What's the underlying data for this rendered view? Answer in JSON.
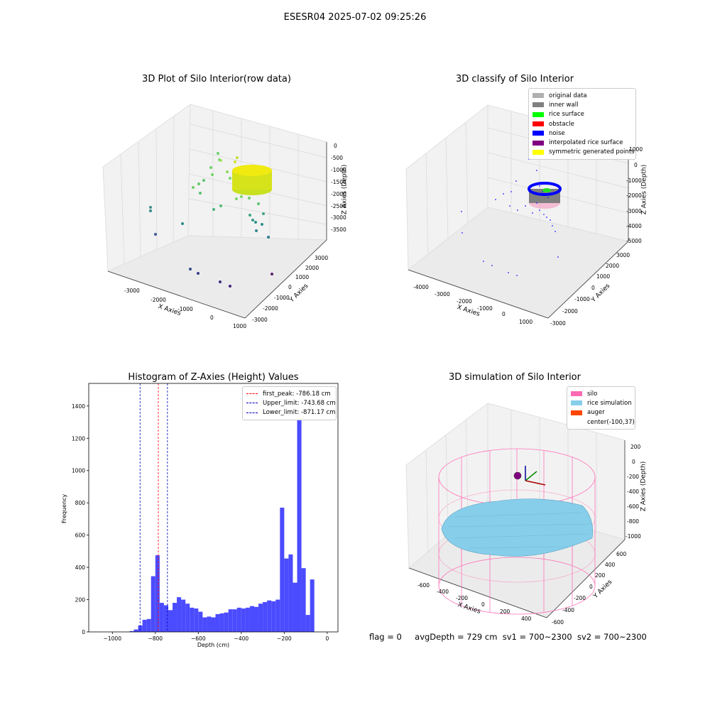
{
  "figure": {
    "suptitle": "ESESR04 2025-07-02 09:25:26"
  },
  "panel_raw": {
    "title": "3D Plot of Silo Interior(row data)",
    "xlabel": "X Axies",
    "ylabel": "Y Axies",
    "zlabel": "Z Axies (Depth)",
    "xticks": [
      "-3000",
      "-2000",
      "-1000",
      "0",
      "1000"
    ],
    "yticks": [
      "-3000",
      "-2000",
      "-1000",
      "0",
      "1000",
      "2000",
      "3000"
    ],
    "zticks": [
      "0",
      "-500",
      "-1000",
      "-1500",
      "-2000",
      "-2500",
      "-3000",
      "-3500"
    ]
  },
  "panel_classify": {
    "title": "3D classify of Silo Interior",
    "xlabel": "X Axies",
    "ylabel": "Y Axies",
    "zlabel": "Z Axies (Depth)",
    "xticks": [
      "-4000",
      "-3000",
      "-2000",
      "-1000",
      "0",
      "1000"
    ],
    "yticks": [
      "-3000",
      "-2000",
      "-1000",
      "0",
      "1000",
      "2000",
      "3000"
    ],
    "zticks": [
      "1000",
      "0",
      "-1000",
      "-2000",
      "-3000",
      "-4000",
      "-5000"
    ],
    "legend": [
      {
        "label": "original data",
        "color": "#b0b0b0"
      },
      {
        "label": "inner wall",
        "color": "#808080"
      },
      {
        "label": "rice surface",
        "color": "#00ff00"
      },
      {
        "label": "obstacle",
        "color": "#ff0000"
      },
      {
        "label": "noise",
        "color": "#0000ff"
      },
      {
        "label": "interpolated rice surface",
        "color": "#800080"
      },
      {
        "label": "symmetric generated points",
        "color": "#ffff00"
      }
    ]
  },
  "panel_sim": {
    "title": "3D simulation of Silo Interior",
    "xlabel": "X Axies",
    "ylabel": "Y Axies",
    "zlabel": "Z Axies (Depth)",
    "xticks": [
      "-600",
      "-400",
      "-200",
      "0",
      "200",
      "400"
    ],
    "yticks": [
      "-600",
      "-400",
      "-200",
      "0",
      "200",
      "400",
      "600"
    ],
    "zticks": [
      "200",
      "0",
      "-200",
      "-400",
      "-600",
      "-800",
      "-1000"
    ],
    "legend": [
      {
        "label": "silo",
        "color": "#ff69b4"
      },
      {
        "label": "rice simulation",
        "color": "#87ceeb"
      },
      {
        "label": "auger",
        "color": "#ff4500"
      },
      {
        "label": "center(-100,37)",
        "color": ""
      }
    ]
  },
  "footer": {
    "flag": "flag = 0",
    "avg": "avgDepth = 729 cm",
    "sv1": "sv1 = 700~2300",
    "sv2": "sv2 = 700~2300"
  },
  "chart_data": {
    "type": "bar",
    "title": "Histogram of Z-Axies (Height) Values",
    "xlabel": "Depth (cm)",
    "ylabel": "Frequency",
    "xlim": [
      -1110,
      50
    ],
    "ylim": [
      0,
      1540
    ],
    "xticks": [
      -1000,
      -800,
      -600,
      -400,
      -200,
      0
    ],
    "yticks": [
      0,
      200,
      400,
      600,
      800,
      1000,
      1200,
      1400
    ],
    "bin_width": 20,
    "bins": [
      {
        "x0": -920,
        "value": 5
      },
      {
        "x0": -900,
        "value": 15
      },
      {
        "x0": -880,
        "value": 40
      },
      {
        "x0": -860,
        "value": 75
      },
      {
        "x0": -840,
        "value": 80
      },
      {
        "x0": -820,
        "value": 345
      },
      {
        "x0": -800,
        "value": 475
      },
      {
        "x0": -780,
        "value": 180
      },
      {
        "x0": -760,
        "value": 165
      },
      {
        "x0": -740,
        "value": 135
      },
      {
        "x0": -720,
        "value": 180
      },
      {
        "x0": -700,
        "value": 215
      },
      {
        "x0": -680,
        "value": 200
      },
      {
        "x0": -660,
        "value": 175
      },
      {
        "x0": -640,
        "value": 150
      },
      {
        "x0": -620,
        "value": 145
      },
      {
        "x0": -600,
        "value": 125
      },
      {
        "x0": -580,
        "value": 90
      },
      {
        "x0": -560,
        "value": 95
      },
      {
        "x0": -540,
        "value": 90
      },
      {
        "x0": -520,
        "value": 110
      },
      {
        "x0": -500,
        "value": 115
      },
      {
        "x0": -480,
        "value": 120
      },
      {
        "x0": -460,
        "value": 140
      },
      {
        "x0": -440,
        "value": 140
      },
      {
        "x0": -420,
        "value": 150
      },
      {
        "x0": -400,
        "value": 145
      },
      {
        "x0": -380,
        "value": 150
      },
      {
        "x0": -360,
        "value": 160
      },
      {
        "x0": -340,
        "value": 155
      },
      {
        "x0": -320,
        "value": 175
      },
      {
        "x0": -300,
        "value": 185
      },
      {
        "x0": -280,
        "value": 195
      },
      {
        "x0": -260,
        "value": 190
      },
      {
        "x0": -240,
        "value": 200
      },
      {
        "x0": -220,
        "value": 770
      },
      {
        "x0": -200,
        "value": 455
      },
      {
        "x0": -180,
        "value": 480
      },
      {
        "x0": -160,
        "value": 305
      },
      {
        "x0": -140,
        "value": 1470
      },
      {
        "x0": -120,
        "value": 395
      },
      {
        "x0": -100,
        "value": 105
      },
      {
        "x0": -80,
        "value": 325
      }
    ],
    "bar_color": "#4b4bff",
    "vlines": [
      {
        "label": "first_peak: -786.18 cm",
        "x": -786.18,
        "color": "#ff0000"
      },
      {
        "label": "Upper_limit: -743.68 cm",
        "x": -743.68,
        "color": "#0000bb"
      },
      {
        "label": "Lower_limit: -871.17 cm",
        "x": -871.17,
        "color": "#0000bb"
      }
    ],
    "legend_position": "top-right"
  }
}
